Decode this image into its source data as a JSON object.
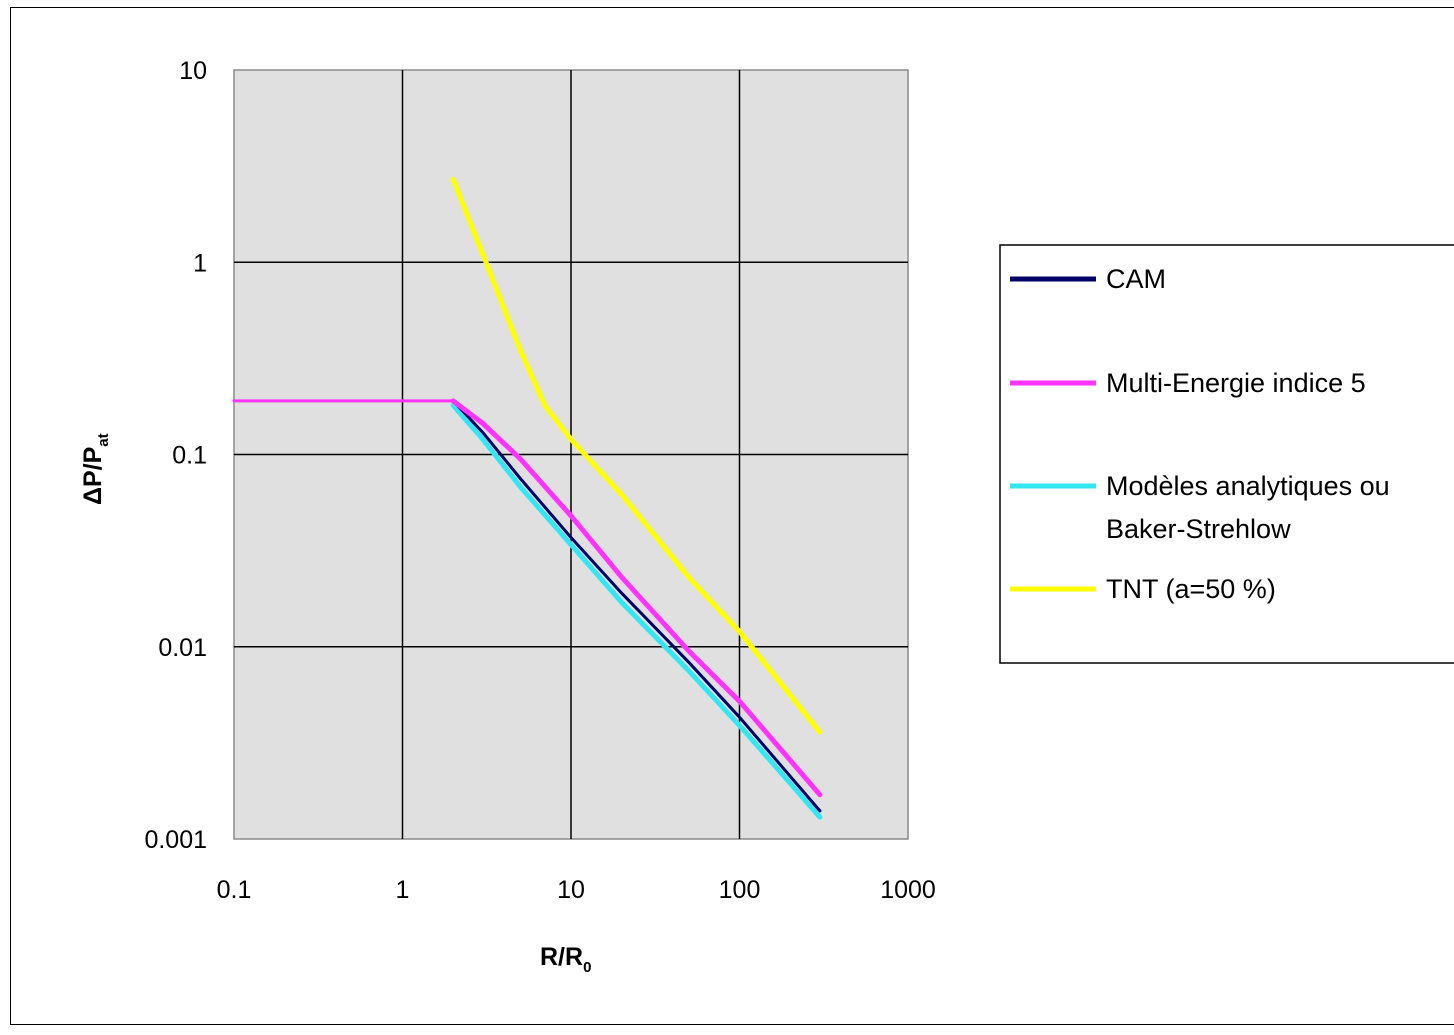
{
  "chart_data": {
    "type": "line",
    "title": "",
    "x_scale": "log",
    "y_scale": "log",
    "xlim": [
      0.1,
      1000
    ],
    "ylim": [
      0.001,
      10
    ],
    "x_ticks": [
      "0.1",
      "1",
      "10",
      "100",
      "1000"
    ],
    "y_ticks": [
      "0.001",
      "0.01",
      "0.1",
      "1",
      "10"
    ],
    "xlabel": {
      "main": "R/R",
      "sub": "0"
    },
    "ylabel": {
      "main": "ΔP/P",
      "sub": "at"
    },
    "grid": true,
    "plot_background": "#e0e0e0",
    "legend_position": "right",
    "series": [
      {
        "name": "Multi-Energie indice 5",
        "color": "#ff33ff",
        "width": 3,
        "x": [
          0.1,
          2.0
        ],
        "y": [
          0.19,
          0.19
        ]
      },
      {
        "name": "TNT (a=50 %)",
        "color": "#ffff00",
        "width": 5,
        "x": [
          2.0,
          3.0,
          5.0,
          7.0,
          10.0,
          20.0,
          50.0,
          100.0,
          300.0
        ],
        "y": [
          2.7,
          1.1,
          0.35,
          0.18,
          0.12,
          0.062,
          0.023,
          0.012,
          0.0036
        ]
      },
      {
        "name": "Modèles analytiques ou Baker-Strehlow",
        "color": "#33e6f2",
        "width": 5,
        "x": [
          2.0,
          3.0,
          5.0,
          10.0,
          20.0,
          50.0,
          100.0,
          300.0
        ],
        "y": [
          0.18,
          0.12,
          0.068,
          0.034,
          0.017,
          0.0075,
          0.0039,
          0.0013
        ]
      },
      {
        "name": "CAM",
        "color": "#000066",
        "width": 3,
        "x": [
          2.0,
          3.0,
          5.0,
          10.0,
          20.0,
          50.0,
          100.0,
          300.0
        ],
        "y": [
          0.19,
          0.13,
          0.075,
          0.037,
          0.019,
          0.0083,
          0.0043,
          0.0014
        ]
      },
      {
        "name": "Multi-Energie indice 5",
        "color": "#ff33ff",
        "width": 5,
        "x": [
          2.0,
          3.0,
          5.0,
          10.0,
          20.0,
          50.0,
          100.0,
          300.0
        ],
        "y": [
          0.19,
          0.145,
          0.095,
          0.048,
          0.023,
          0.0095,
          0.0052,
          0.0017
        ]
      }
    ],
    "legend": [
      {
        "label": "CAM",
        "color": "#000066"
      },
      {
        "label": "Multi-Energie indice 5",
        "color": "#ff33ff"
      },
      {
        "label": "Modèles analytiques ou Baker-Strehlow",
        "lines": [
          "Modèles analytiques ou",
          "Baker-Strehlow"
        ],
        "color": "#33e6f2"
      },
      {
        "label": "TNT (a=50 %)",
        "color": "#ffff00"
      }
    ]
  }
}
